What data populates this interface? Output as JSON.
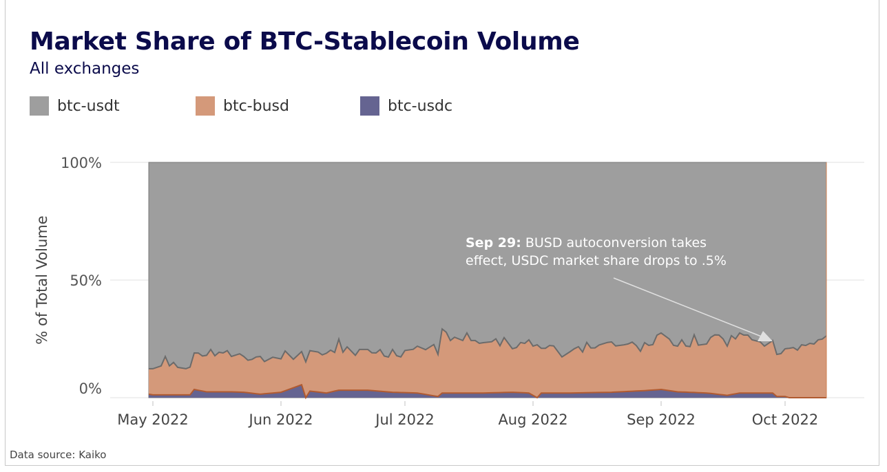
{
  "title": "Market Share of BTC-Stablecoin Volume",
  "subtitle": "All exchanges",
  "source": "Data source: Kaiko",
  "legend": [
    {
      "label": "btc-usdt",
      "color": "#9e9e9e"
    },
    {
      "label": "btc-busd",
      "color": "#d4997a"
    },
    {
      "label": "btc-usdc",
      "color": "#656491"
    }
  ],
  "annotation": {
    "bold": "Sep 29:",
    "line1": " BUSD autoconversion takes",
    "line2": "effect, USDC market share drops to .5%",
    "date": "2022-09-29"
  },
  "chart_data": {
    "type": "area",
    "stacked": true,
    "normalized_percent": true,
    "ylabel": "% of Total Volume",
    "ylim": [
      0,
      100
    ],
    "yticks": [
      {
        "value": 0,
        "label": "0%"
      },
      {
        "value": 50,
        "label": "50%"
      },
      {
        "value": 100,
        "label": "100%"
      }
    ],
    "xlim": [
      "2022-04-30",
      "2022-10-11"
    ],
    "xticks": [
      {
        "date": "2022-05-01",
        "label": "May 2022"
      },
      {
        "date": "2022-06-01",
        "label": "Jun 2022"
      },
      {
        "date": "2022-07-01",
        "label": "Jul 2022"
      },
      {
        "date": "2022-08-01",
        "label": "Aug 2022"
      },
      {
        "date": "2022-09-01",
        "label": "Sep 2022"
      },
      {
        "date": "2022-10-01",
        "label": "Oct 2022"
      }
    ],
    "grid": true,
    "legend_position": "top-left",
    "series": [
      {
        "name": "btc-usdc",
        "color": "#656491",
        "line": "#b05a30",
        "points": [
          [
            "2022-04-30",
            1.5
          ],
          [
            "2022-05-01",
            1.2
          ],
          [
            "2022-05-10",
            1.2
          ],
          [
            "2022-05-11",
            3.5
          ],
          [
            "2022-05-14",
            2.5
          ],
          [
            "2022-05-20",
            2.5
          ],
          [
            "2022-05-23",
            2.3
          ],
          [
            "2022-05-27",
            1.5
          ],
          [
            "2022-06-01",
            2.3
          ],
          [
            "2022-06-06",
            5.5
          ],
          [
            "2022-06-07",
            0
          ],
          [
            "2022-06-08",
            2.8
          ],
          [
            "2022-06-12",
            2.0
          ],
          [
            "2022-06-15",
            3.2
          ],
          [
            "2022-06-22",
            3.2
          ],
          [
            "2022-06-28",
            2.3
          ],
          [
            "2022-07-04",
            2.0
          ],
          [
            "2022-07-09",
            0.5
          ],
          [
            "2022-07-10",
            2.0
          ],
          [
            "2022-07-16",
            2.0
          ],
          [
            "2022-07-20",
            2.0
          ],
          [
            "2022-07-27",
            2.3
          ],
          [
            "2022-07-31",
            2.0
          ],
          [
            "2022-08-02",
            0
          ],
          [
            "2022-08-03",
            2.0
          ],
          [
            "2022-08-10",
            2.0
          ],
          [
            "2022-08-20",
            2.3
          ],
          [
            "2022-08-28",
            3.0
          ],
          [
            "2022-09-01",
            3.5
          ],
          [
            "2022-09-05",
            2.5
          ],
          [
            "2022-09-12",
            2.0
          ],
          [
            "2022-09-17",
            1.0
          ],
          [
            "2022-09-20",
            2.0
          ],
          [
            "2022-09-25",
            2.0
          ],
          [
            "2022-09-28",
            2.0
          ],
          [
            "2022-09-29",
            0.5
          ],
          [
            "2022-10-01",
            0.5
          ],
          [
            "2022-10-02",
            0
          ],
          [
            "2022-10-11",
            0
          ]
        ]
      },
      {
        "name": "btc-busd",
        "color": "#d4997a",
        "line": "#6b6b6b",
        "points": [
          [
            "2022-04-30",
            10.8
          ],
          [
            "2022-05-01",
            11.1
          ],
          [
            "2022-05-03",
            12.3
          ],
          [
            "2022-05-04",
            16.3
          ],
          [
            "2022-05-05",
            12.3
          ],
          [
            "2022-05-06",
            13.8
          ],
          [
            "2022-05-07",
            11.7
          ],
          [
            "2022-05-09",
            11.1
          ],
          [
            "2022-05-10",
            11.8
          ],
          [
            "2022-05-11",
            15.5
          ],
          [
            "2022-05-12",
            15.8
          ],
          [
            "2022-05-13",
            14.9
          ],
          [
            "2022-05-14",
            15.5
          ],
          [
            "2022-05-15",
            18.0
          ],
          [
            "2022-05-16",
            15.3
          ],
          [
            "2022-05-17",
            16.8
          ],
          [
            "2022-05-18",
            16.5
          ],
          [
            "2022-05-19",
            17.5
          ],
          [
            "2022-05-20",
            15.0
          ],
          [
            "2022-05-22",
            16.3
          ],
          [
            "2022-05-23",
            15.2
          ],
          [
            "2022-05-24",
            13.8
          ],
          [
            "2022-05-25",
            14.4
          ],
          [
            "2022-05-26",
            15.6
          ],
          [
            "2022-05-27",
            16.0
          ],
          [
            "2022-05-28",
            13.7
          ],
          [
            "2022-05-30",
            15.2
          ],
          [
            "2022-06-01",
            14.2
          ],
          [
            "2022-06-02",
            16.9
          ],
          [
            "2022-06-04",
            12.1
          ],
          [
            "2022-06-06",
            14.1
          ],
          [
            "2022-06-07",
            15.2
          ],
          [
            "2022-06-08",
            17.2
          ],
          [
            "2022-06-10",
            17.0
          ],
          [
            "2022-06-11",
            16.0
          ],
          [
            "2022-06-13",
            17.8
          ],
          [
            "2022-06-14",
            16.4
          ],
          [
            "2022-06-15",
            21.7
          ],
          [
            "2022-06-16",
            16.1
          ],
          [
            "2022-06-17",
            18.4
          ],
          [
            "2022-06-19",
            14.8
          ],
          [
            "2022-06-20",
            17.3
          ],
          [
            "2022-06-22",
            17.3
          ],
          [
            "2022-06-23",
            16.0
          ],
          [
            "2022-06-24",
            16.1
          ],
          [
            "2022-06-25",
            17.7
          ],
          [
            "2022-06-26",
            15.1
          ],
          [
            "2022-06-27",
            14.8
          ],
          [
            "2022-06-28",
            18.2
          ],
          [
            "2022-06-29",
            15.6
          ],
          [
            "2022-06-30",
            15.1
          ],
          [
            "2022-07-01",
            17.9
          ],
          [
            "2022-07-03",
            18.5
          ],
          [
            "2022-07-04",
            19.9
          ],
          [
            "2022-07-06",
            19.0
          ],
          [
            "2022-07-08",
            21.8
          ],
          [
            "2022-07-09",
            17.9
          ],
          [
            "2022-07-10",
            27.2
          ],
          [
            "2022-07-11",
            25.8
          ],
          [
            "2022-07-12",
            22.3
          ],
          [
            "2022-07-13",
            23.7
          ],
          [
            "2022-07-15",
            22.3
          ],
          [
            "2022-07-16",
            25.5
          ],
          [
            "2022-07-17",
            22.3
          ],
          [
            "2022-07-18",
            22.3
          ],
          [
            "2022-07-19",
            21.1
          ],
          [
            "2022-07-20",
            21.4
          ],
          [
            "2022-07-22",
            21.7
          ],
          [
            "2022-07-23",
            22.9
          ],
          [
            "2022-07-24",
            19.9
          ],
          [
            "2022-07-25",
            23.3
          ],
          [
            "2022-07-27",
            18.5
          ],
          [
            "2022-07-28",
            19.1
          ],
          [
            "2022-07-29",
            21.3
          ],
          [
            "2022-07-30",
            21.0
          ],
          [
            "2022-07-31",
            22.6
          ],
          [
            "2022-08-01",
            20.9
          ],
          [
            "2022-08-02",
            22.5
          ],
          [
            "2022-08-03",
            19.0
          ],
          [
            "2022-08-04",
            19.0
          ],
          [
            "2022-08-05",
            20.2
          ],
          [
            "2022-08-06",
            20.0
          ],
          [
            "2022-08-08",
            15.3
          ],
          [
            "2022-08-10",
            17.6
          ],
          [
            "2022-08-11",
            18.8
          ],
          [
            "2022-08-12",
            19.6
          ],
          [
            "2022-08-13",
            17.3
          ],
          [
            "2022-08-14",
            21.4
          ],
          [
            "2022-08-15",
            19.0
          ],
          [
            "2022-08-16",
            19.0
          ],
          [
            "2022-08-17",
            20.2
          ],
          [
            "2022-08-19",
            21.2
          ],
          [
            "2022-08-20",
            21.4
          ],
          [
            "2022-08-21",
            19.6
          ],
          [
            "2022-08-23",
            19.9
          ],
          [
            "2022-08-24",
            20.2
          ],
          [
            "2022-08-25",
            20.9
          ],
          [
            "2022-08-26",
            19.3
          ],
          [
            "2022-08-27",
            16.8
          ],
          [
            "2022-08-28",
            20.4
          ],
          [
            "2022-08-29",
            19.1
          ],
          [
            "2022-08-30",
            19.3
          ],
          [
            "2022-08-31",
            23.2
          ],
          [
            "2022-09-01",
            24.0
          ],
          [
            "2022-09-03",
            21.9
          ],
          [
            "2022-09-04",
            19.5
          ],
          [
            "2022-09-05",
            19.4
          ],
          [
            "2022-09-06",
            22.2
          ],
          [
            "2022-09-07",
            19.6
          ],
          [
            "2022-09-08",
            19.4
          ],
          [
            "2022-09-09",
            24.5
          ],
          [
            "2022-09-10",
            20.2
          ],
          [
            "2022-09-12",
            20.8
          ],
          [
            "2022-09-13",
            23.8
          ],
          [
            "2022-09-14",
            25.1
          ],
          [
            "2022-09-15",
            25.2
          ],
          [
            "2022-09-16",
            23.8
          ],
          [
            "2022-09-17",
            20.9
          ],
          [
            "2022-09-18",
            25.0
          ],
          [
            "2022-09-19",
            23.3
          ],
          [
            "2022-09-20",
            25.5
          ],
          [
            "2022-09-21",
            24.6
          ],
          [
            "2022-09-22",
            24.6
          ],
          [
            "2022-09-23",
            22.6
          ],
          [
            "2022-09-25",
            21.7
          ],
          [
            "2022-09-26",
            19.9
          ],
          [
            "2022-09-28",
            22.3
          ],
          [
            "2022-09-29",
            17.9
          ],
          [
            "2022-09-30",
            18.2
          ],
          [
            "2022-10-01",
            20.3
          ],
          [
            "2022-10-02",
            21.0
          ],
          [
            "2022-10-03",
            21.3
          ],
          [
            "2022-10-04",
            20.2
          ],
          [
            "2022-10-05",
            22.5
          ],
          [
            "2022-10-06",
            22.2
          ],
          [
            "2022-10-07",
            23.1
          ],
          [
            "2022-10-08",
            22.8
          ],
          [
            "2022-10-09",
            24.6
          ],
          [
            "2022-10-10",
            24.9
          ],
          [
            "2022-10-11",
            26.3
          ]
        ]
      },
      {
        "name": "btc-usdt",
        "color": "#9e9e9e",
        "line": "#777777",
        "points": "remainder to 100%"
      }
    ]
  }
}
